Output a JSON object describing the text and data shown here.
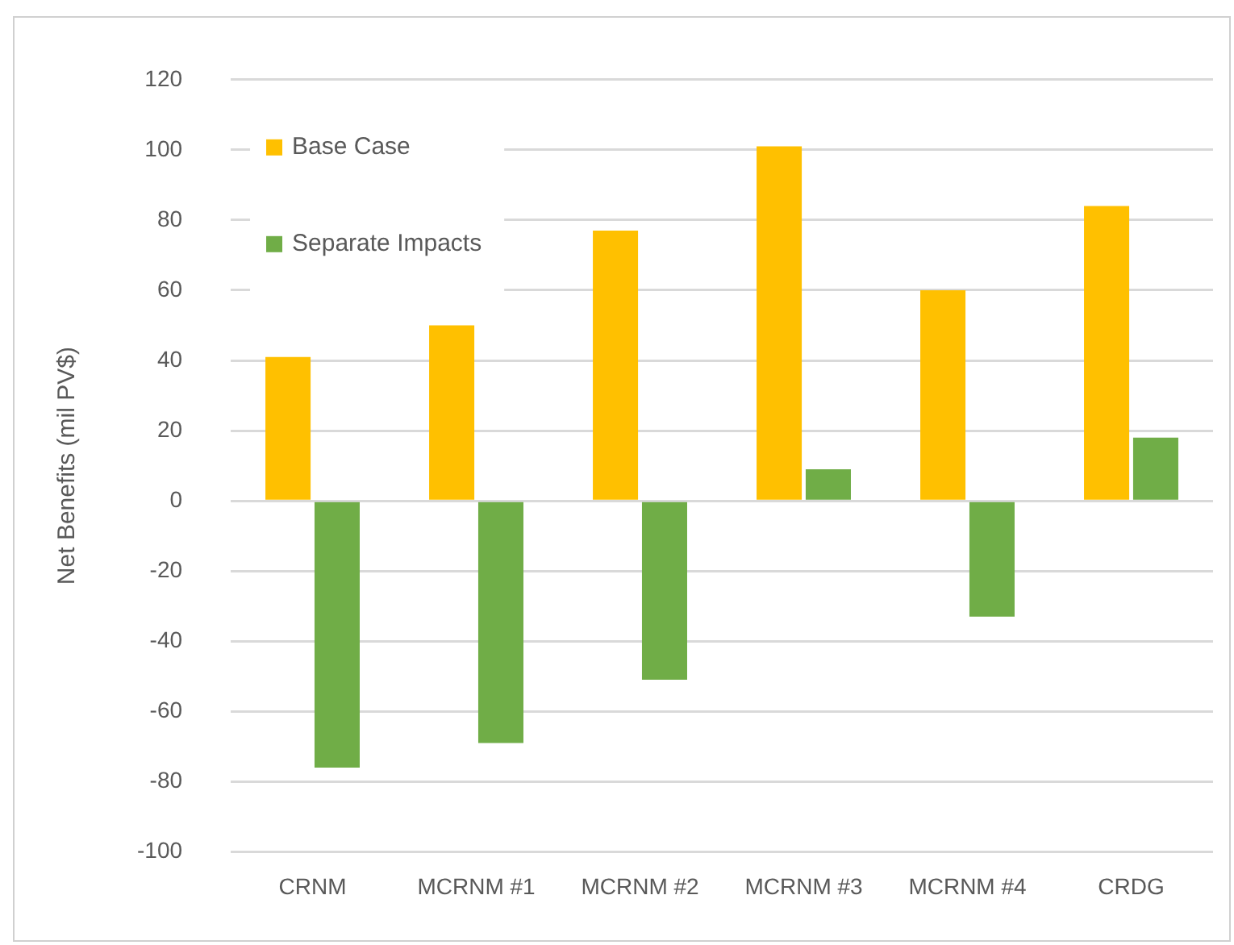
{
  "chart_data": {
    "type": "bar",
    "ylabel": "Net Benefits (mil PV$)",
    "categories": [
      "CRNM",
      "MCRNM #1",
      "MCRNM #2",
      "MCRNM #3",
      "MCRNM #4",
      "CRDG"
    ],
    "series": [
      {
        "name": "Base Case",
        "color": "#ffc000",
        "values": [
          41,
          50,
          77,
          101,
          60,
          84
        ]
      },
      {
        "name": "Separate Impacts",
        "color": "#70ad47",
        "values": [
          -76,
          -69,
          -51,
          9,
          -33,
          18
        ]
      }
    ],
    "ylim": [
      -100,
      120
    ],
    "yticks": [
      -100,
      -80,
      -60,
      -40,
      -20,
      0,
      20,
      40,
      60,
      80,
      100,
      120
    ],
    "grid": "y",
    "legend": "top left"
  }
}
